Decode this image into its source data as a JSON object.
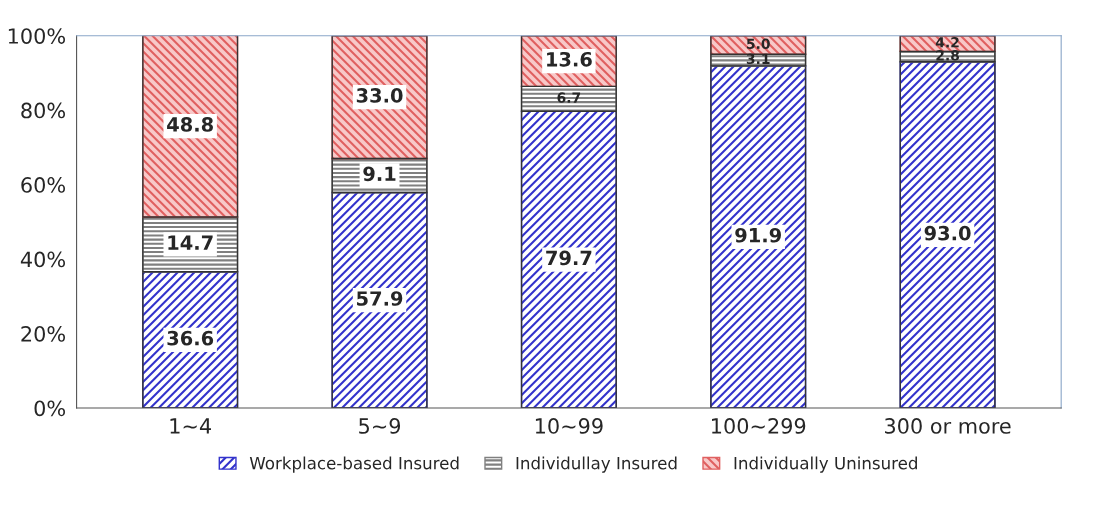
{
  "chart_data": {
    "type": "bar",
    "stacked": true,
    "categories": [
      "1~4",
      "5~9",
      "10~99",
      "100~299",
      "300 or more"
    ],
    "series": [
      {
        "name": "Workplace-based Insured",
        "color": "#3333cc",
        "values": [
          36.6,
          57.9,
          79.7,
          91.9,
          93.0
        ],
        "value_labels": [
          "36.6",
          "57.9",
          "79.7",
          "91.9",
          "93.0"
        ]
      },
      {
        "name": "Individullay Insured",
        "color": "#808080",
        "values": [
          14.7,
          9.1,
          6.7,
          3.1,
          2.8
        ],
        "value_labels": [
          "14.7",
          "9.1",
          "6.7",
          "3.1",
          "2.8"
        ]
      },
      {
        "name": "Individually Uninsured",
        "color": "#e06060",
        "values": [
          48.8,
          33.0,
          13.6,
          5.0,
          4.2
        ],
        "value_labels": [
          "48.8",
          "33.0",
          "13.6",
          "5.0",
          "4.2"
        ]
      }
    ],
    "ylim": [
      0,
      100
    ],
    "yticks": [
      {
        "value": 0,
        "label": "0%"
      },
      {
        "value": 20,
        "label": "20%"
      },
      {
        "value": 40,
        "label": "40%"
      },
      {
        "value": 60,
        "label": "60%"
      },
      {
        "value": 80,
        "label": "80%"
      },
      {
        "value": 100,
        "label": "100%"
      }
    ],
    "grid": false,
    "legend": "bottom"
  }
}
